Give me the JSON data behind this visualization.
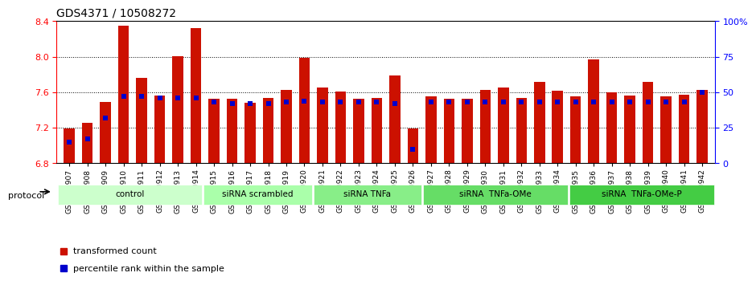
{
  "title": "GDS4371 / 10508272",
  "samples": [
    "GSM790907",
    "GSM790908",
    "GSM790909",
    "GSM790910",
    "GSM790911",
    "GSM790912",
    "GSM790913",
    "GSM790914",
    "GSM790915",
    "GSM790916",
    "GSM790917",
    "GSM790918",
    "GSM790919",
    "GSM790920",
    "GSM790921",
    "GSM790922",
    "GSM790923",
    "GSM790924",
    "GSM790925",
    "GSM790926",
    "GSM790927",
    "GSM790928",
    "GSM790929",
    "GSM790930",
    "GSM790931",
    "GSM790932",
    "GSM790933",
    "GSM790934",
    "GSM790935",
    "GSM790936",
    "GSM790937",
    "GSM790938",
    "GSM790939",
    "GSM790940",
    "GSM790941",
    "GSM790942"
  ],
  "red_values": [
    7.19,
    7.26,
    7.49,
    8.35,
    7.76,
    7.56,
    8.01,
    8.32,
    7.53,
    7.53,
    7.48,
    7.54,
    7.63,
    7.99,
    7.65,
    7.61,
    7.53,
    7.54,
    7.79,
    7.19,
    7.55,
    7.53,
    7.53,
    7.63,
    7.65,
    7.54,
    7.72,
    7.62,
    7.55,
    7.97,
    7.6,
    7.56,
    7.72,
    7.55,
    7.57,
    7.63
  ],
  "blue_percentiles": [
    15,
    17,
    32,
    47,
    47,
    46,
    46,
    46,
    43,
    42,
    42,
    42,
    43,
    44,
    43,
    43,
    43,
    43,
    42,
    10,
    43,
    43,
    43,
    43,
    43,
    43,
    43,
    43,
    43,
    43,
    43,
    43,
    43,
    43,
    43,
    50
  ],
  "ylim_left": [
    6.8,
    8.4
  ],
  "ylim_right": [
    0,
    100
  ],
  "yticks_left": [
    6.8,
    7.2,
    7.6,
    8.0,
    8.4
  ],
  "yticks_right": [
    0,
    25,
    50,
    75,
    100
  ],
  "ytick_labels_right": [
    "0",
    "25",
    "50",
    "75",
    "100%"
  ],
  "bar_color": "#cc1100",
  "dot_color": "#0000cc",
  "bar_bottom": 6.8,
  "groups": [
    {
      "label": "control",
      "start": 0,
      "end": 8,
      "color": "#ccffcc"
    },
    {
      "label": "siRNA scrambled",
      "start": 8,
      "end": 14,
      "color": "#aaffaa"
    },
    {
      "label": "siRNA TNFa",
      "start": 14,
      "end": 20,
      "color": "#88ee88"
    },
    {
      "label": "siRNA  TNFa-OMe",
      "start": 20,
      "end": 28,
      "color": "#66dd66"
    },
    {
      "label": "siRNA  TNFa-OMe-P",
      "start": 28,
      "end": 36,
      "color": "#44cc44"
    }
  ],
  "legend_items": [
    {
      "label": "transformed count",
      "color": "#cc1100",
      "marker": "s"
    },
    {
      "label": "percentile rank within the sample",
      "color": "#0000cc",
      "marker": "s"
    }
  ]
}
